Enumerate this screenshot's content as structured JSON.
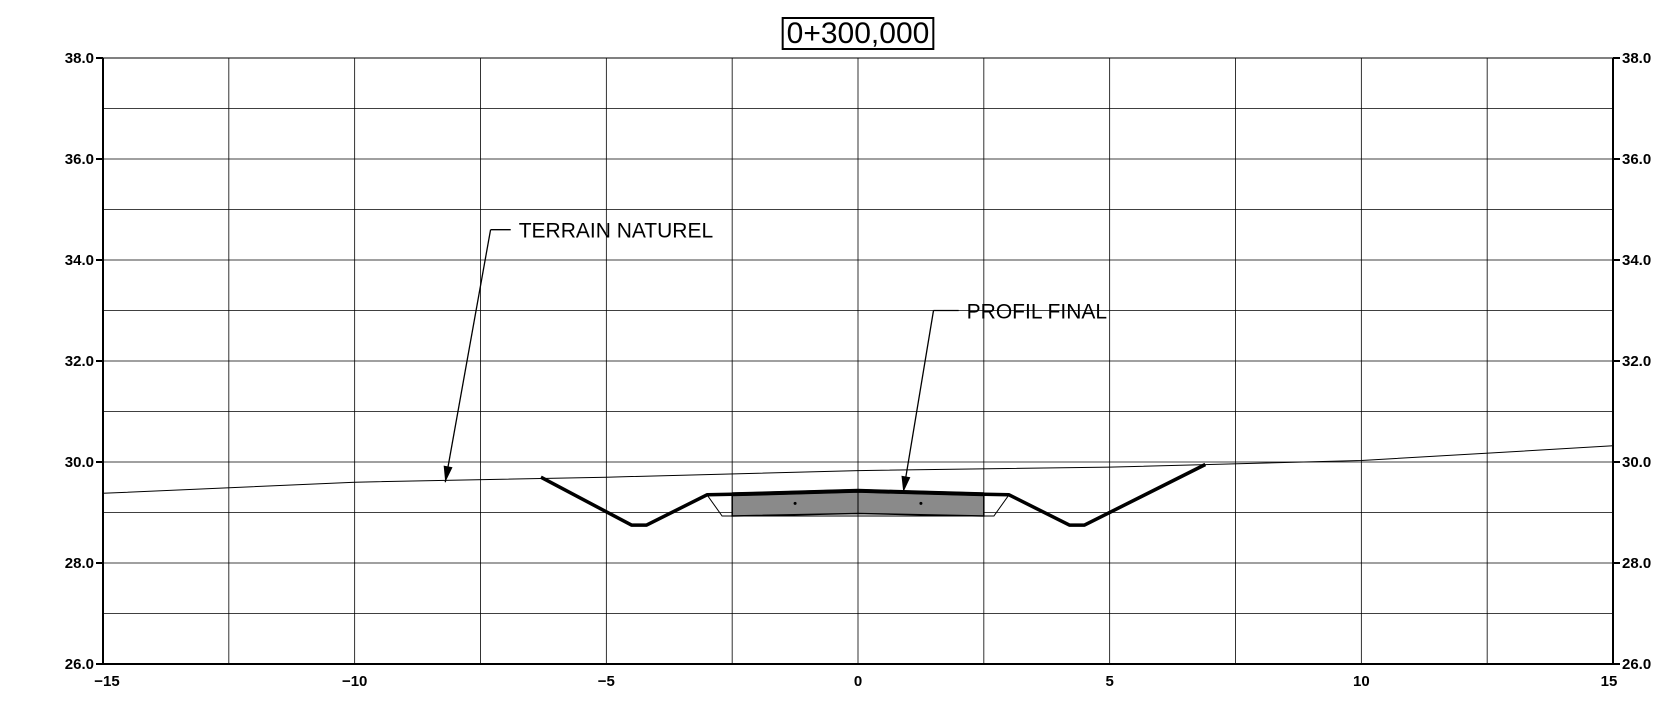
{
  "title": "0+300,000",
  "chart_data": {
    "type": "line",
    "title": "0+300,000",
    "xlim": [
      -15,
      15
    ],
    "ylim": [
      26.0,
      38.0
    ],
    "x_ticks": [
      -15,
      -10,
      -5,
      0,
      5,
      10,
      15
    ],
    "x_tick_labels": [
      "−15",
      "−10",
      "−5",
      "0",
      "5",
      "10",
      "15"
    ],
    "y_ticks": [
      26.0,
      28.0,
      30.0,
      32.0,
      34.0,
      36.0,
      38.0
    ],
    "y_tick_labels": [
      "26.0",
      "28.0",
      "30.0",
      "32.0",
      "34.0",
      "36.0",
      "38.0"
    ],
    "grid": true,
    "grid_x_step": 2.5,
    "grid_y_step": 1.0,
    "series": [
      {
        "name": "TERRAIN NATUREL",
        "x": [
          -15,
          -10,
          -5,
          0,
          5,
          10,
          15
        ],
        "y": [
          29.38,
          29.6,
          29.7,
          29.83,
          29.9,
          30.03,
          30.32
        ]
      },
      {
        "name": "PROFIL FINAL",
        "x": [
          -6.3,
          -4.5,
          -4.2,
          -3.0,
          -2.5,
          0,
          2.5,
          3.0,
          4.2,
          4.5,
          6.9
        ],
        "y": [
          29.7,
          28.75,
          28.75,
          29.35,
          29.36,
          29.43,
          29.36,
          29.35,
          28.75,
          28.75,
          29.95
        ]
      }
    ],
    "pavement": {
      "top": [
        [
          -2.5,
          29.36
        ],
        [
          0,
          29.43
        ],
        [
          2.5,
          29.36
        ]
      ],
      "bottom": [
        [
          -2.5,
          28.93
        ],
        [
          0,
          28.98
        ],
        [
          2.5,
          28.93
        ]
      ]
    },
    "sub_layer": [
      [
        -3.0,
        29.35
      ],
      [
        -2.7,
        28.93
      ],
      [
        2.7,
        28.93
      ],
      [
        3.0,
        29.35
      ]
    ],
    "annotations": [
      {
        "text": "TERRAIN NATUREL",
        "points_to": [
          -8.2,
          29.6
        ],
        "leader": [
          [
            -7.3,
            34.6
          ],
          [
            -6.9,
            34.6
          ]
        ]
      },
      {
        "text": "PROFIL FINAL",
        "points_to": [
          0.9,
          29.4
        ],
        "leader": [
          [
            1.5,
            33.0
          ],
          [
            2.0,
            33.0
          ]
        ]
      }
    ]
  }
}
